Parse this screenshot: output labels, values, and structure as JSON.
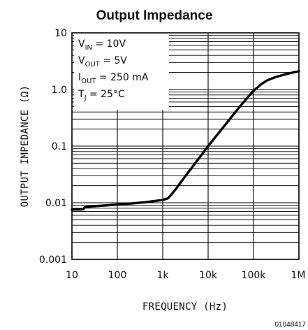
{
  "chart_data": {
    "type": "line",
    "title": "Output Impedance",
    "xlabel": "FREQUENCY (Hz)",
    "ylabel": "OUTPUT IMPEDANCE (Ω)",
    "x_scale": "log",
    "y_scale": "log",
    "xlim": [
      10,
      1000000
    ],
    "ylim": [
      0.001,
      10
    ],
    "grid": true,
    "x_tick_labels": [
      "10",
      "100",
      "1k",
      "10k",
      "100k",
      "1M"
    ],
    "y_tick_labels": [
      "0.001",
      "0.01",
      "0.1",
      "1.0",
      "10"
    ],
    "conditions": [
      {
        "main": "V",
        "sub": "IN",
        "rest": " = 10V"
      },
      {
        "main": "V",
        "sub": "OUT",
        "rest": " = 5V"
      },
      {
        "main": "I",
        "sub": "OUT",
        "rest": " = 250 mA"
      },
      {
        "main": "T",
        "sub": "J",
        "rest": " = 25°C"
      }
    ],
    "series": [
      {
        "x": [
          10,
          15,
          18,
          19,
          25,
          40,
          70,
          100,
          200,
          400,
          700,
          1000,
          1300,
          1500,
          2000,
          3000,
          5000,
          10000,
          20000,
          50000,
          100000,
          150000,
          200000,
          300000,
          500000,
          700000,
          1000000
        ],
        "y": [
          0.0076,
          0.0076,
          0.0077,
          0.0083,
          0.0086,
          0.0088,
          0.0091,
          0.0093,
          0.0097,
          0.0102,
          0.0108,
          0.0112,
          0.012,
          0.0135,
          0.018,
          0.028,
          0.048,
          0.1,
          0.2,
          0.5,
          0.95,
          1.25,
          1.45,
          1.65,
          1.85,
          1.98,
          2.1
        ]
      }
    ]
  },
  "figure_id": "01048417"
}
